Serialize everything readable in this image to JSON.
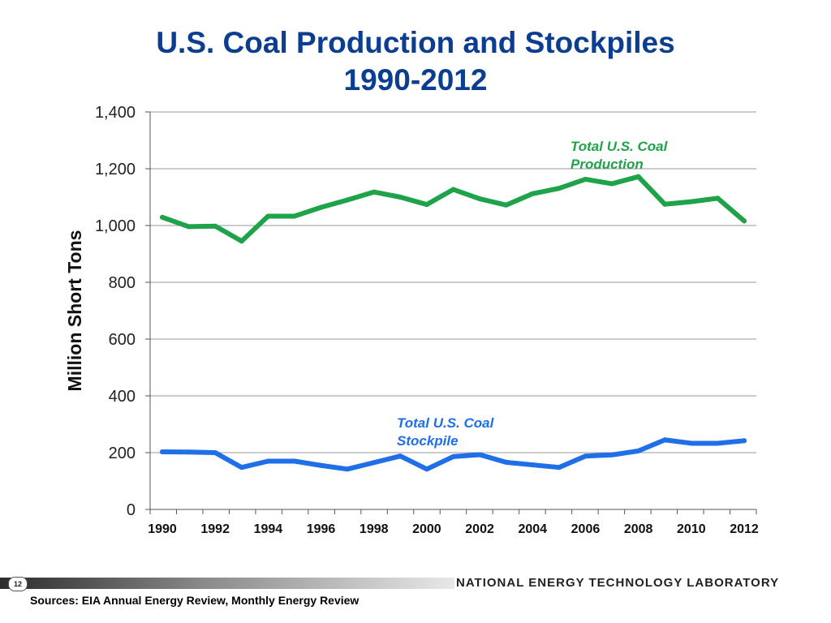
{
  "slide": {
    "title_line1": "U.S. Coal Production and Stockpiles",
    "title_line2": "1990-2012",
    "page_number": "12",
    "lab_name": "NATIONAL ENERGY TECHNOLOGY LABORATORY",
    "sources": "Sources: EIA Annual Energy Review, Monthly Energy Review"
  },
  "colors": {
    "title": "#0b3d91",
    "production": "#1fa34a",
    "stockpile": "#1f6fe8",
    "grid": "#9a9a9a"
  },
  "chart_data": {
    "type": "line",
    "title": "U.S. Coal Production and Stockpiles 1990-2012",
    "xlabel": "",
    "ylabel": "Million Short Tons",
    "ylim": [
      0,
      1400
    ],
    "yticks": [
      0,
      200,
      400,
      600,
      800,
      1000,
      1200,
      1400
    ],
    "ytick_labels": [
      "0",
      "200",
      "400",
      "600",
      "800",
      "1,000",
      "1,200",
      "1,400"
    ],
    "xticks": [
      1990,
      1992,
      1994,
      1996,
      1998,
      2000,
      2002,
      2004,
      2006,
      2008,
      2010,
      2012
    ],
    "xtick_labels": [
      "1990",
      "1992",
      "1994",
      "1996",
      "1998",
      "2000",
      "2002",
      "2004",
      "2006",
      "2008",
      "2010",
      "2012"
    ],
    "grid": true,
    "legend": "none",
    "x": [
      1990,
      1991,
      1992,
      1993,
      1994,
      1995,
      1996,
      1997,
      1998,
      1999,
      2000,
      2001,
      2002,
      2003,
      2004,
      2005,
      2006,
      2007,
      2008,
      2009,
      2010,
      2011,
      2012
    ],
    "series": [
      {
        "name": "Total U.S. Coal Production",
        "label_line1": "Total U.S. Coal",
        "label_line2": "Production",
        "values": [
          1029,
          996,
          998,
          945,
          1033,
          1033,
          1064,
          1090,
          1118,
          1100,
          1074,
          1127,
          1094,
          1072,
          1112,
          1131,
          1163,
          1147,
          1172,
          1075,
          1084,
          1096,
          1016
        ]
      },
      {
        "name": "Total U.S. Coal Stockpile",
        "label_line1": "Total U.S. Coal",
        "label_line2": "Stockpile",
        "values": [
          203,
          202,
          200,
          148,
          170,
          170,
          155,
          142,
          165,
          188,
          142,
          186,
          193,
          166,
          157,
          148,
          188,
          192,
          206,
          245,
          233,
          233,
          242
        ]
      }
    ]
  }
}
